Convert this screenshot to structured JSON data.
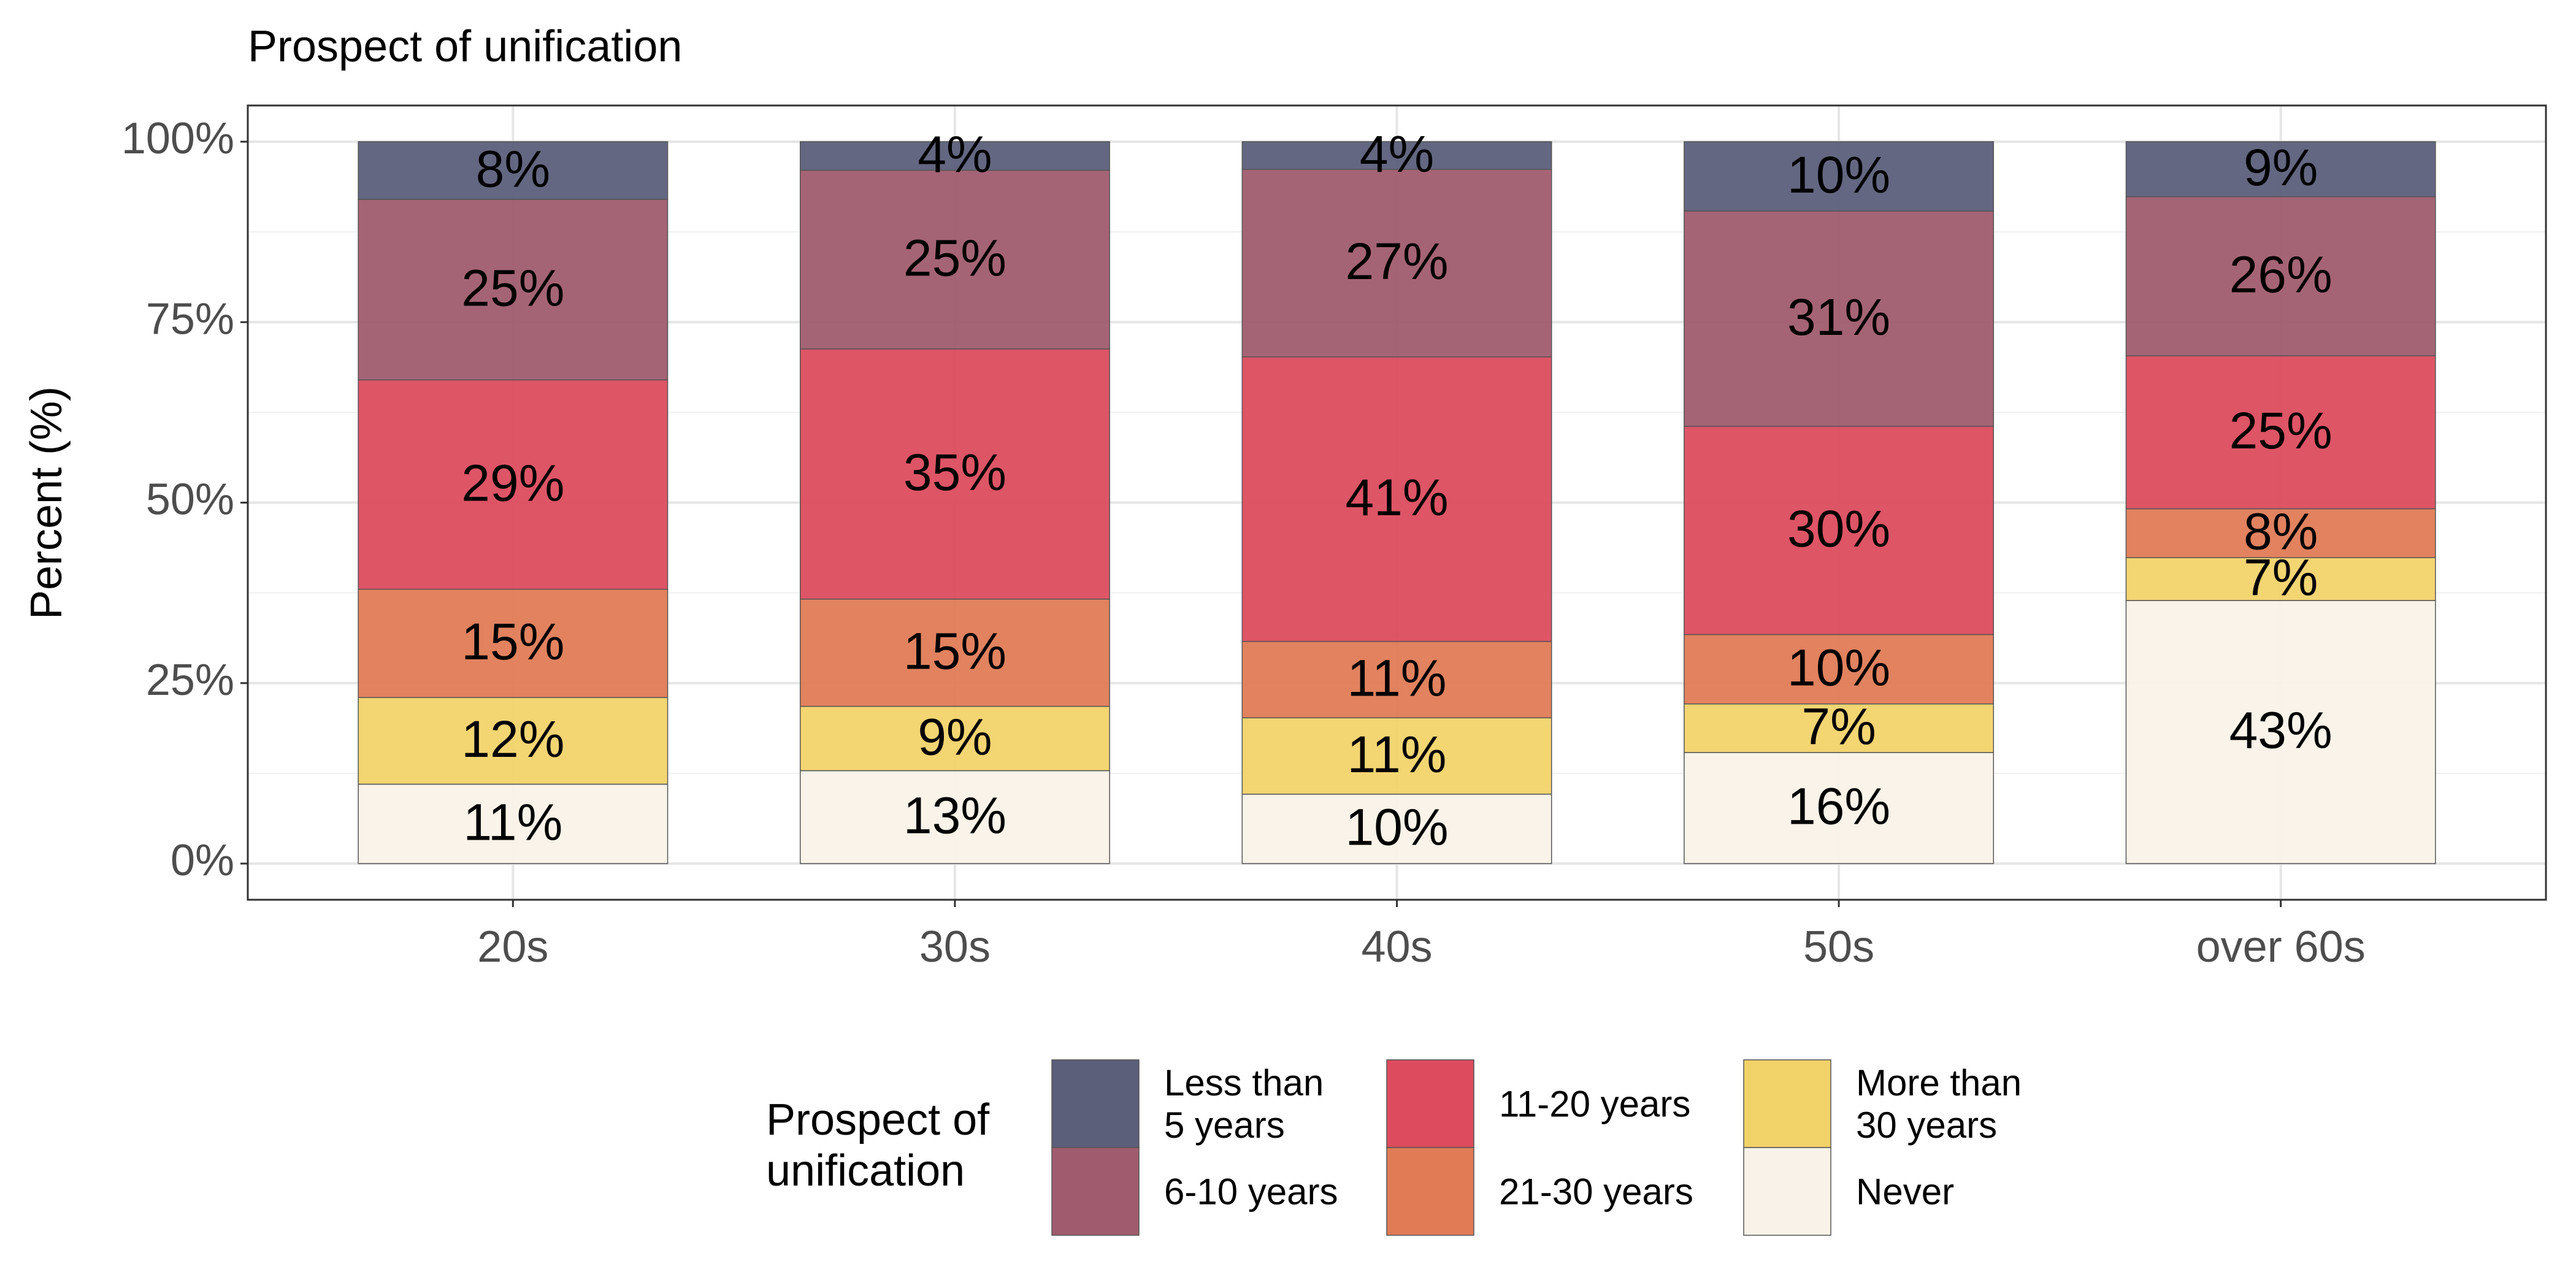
{
  "chart_data": {
    "type": "bar",
    "stacked": "percent",
    "title": "Prospect of unification",
    "y_label": "Percent (%)",
    "legend_title": "Prospect of\nunification",
    "legend_position": "bottom",
    "grid": true,
    "categories": [
      "20s",
      "30s",
      "40s",
      "50s",
      "over 60s"
    ],
    "series": [
      {
        "name": "Less than\n5 years",
        "color": "#5c5f7a",
        "values": [
          8,
          4,
          4,
          10,
          9
        ],
        "value_labels": [
          "8%",
          "4%",
          "4%",
          "10%",
          "9%"
        ]
      },
      {
        "name": "6-10 years",
        "color": "#a05c6e",
        "values": [
          25,
          25,
          27,
          31,
          26
        ],
        "value_labels": [
          "25%",
          "25%",
          "27%",
          "31%",
          "26%"
        ]
      },
      {
        "name": "11-20 years",
        "color": "#dc4c5e",
        "values": [
          29,
          35,
          41,
          30,
          25
        ],
        "value_labels": [
          "29%",
          "35%",
          "41%",
          "30%",
          "25%"
        ]
      },
      {
        "name": "21-30 years",
        "color": "#e07b56",
        "values": [
          15,
          15,
          11,
          10,
          8
        ],
        "value_labels": [
          "15%",
          "15%",
          "11%",
          "10%",
          "8%"
        ]
      },
      {
        "name": "More than\n30 years",
        "color": "#f2d36a",
        "values": [
          12,
          9,
          11,
          7,
          7
        ],
        "value_labels": [
          "12%",
          "9%",
          "11%",
          "7%",
          "7%"
        ]
      },
      {
        "name": "Never",
        "color": "#f9f2e8",
        "values": [
          11,
          13,
          10,
          16,
          43
        ],
        "value_labels": [
          "11%",
          "13%",
          "10%",
          "16%",
          "43%"
        ]
      }
    ],
    "ylim": [
      0,
      100
    ],
    "yticks": [
      {
        "value": 0,
        "label": "0%"
      },
      {
        "value": 25,
        "label": "25%"
      },
      {
        "value": 50,
        "label": "50%"
      },
      {
        "value": 75,
        "label": "75%"
      },
      {
        "value": 100,
        "label": "100%"
      }
    ]
  }
}
